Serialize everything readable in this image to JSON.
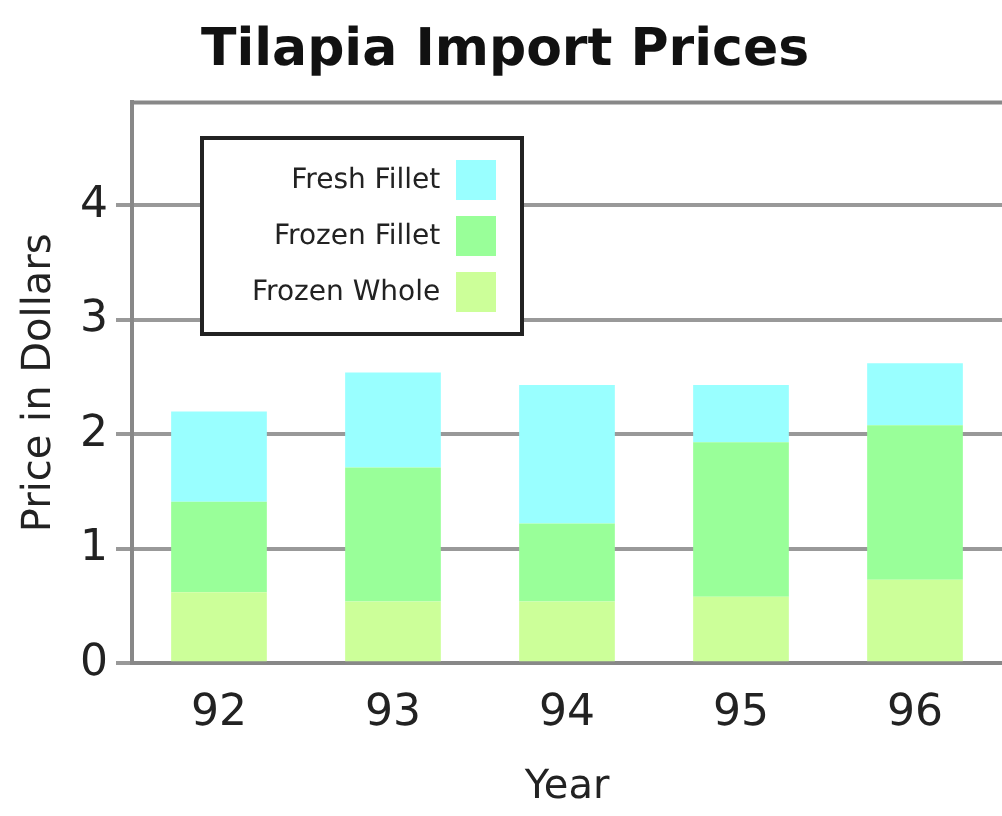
{
  "chart_data": {
    "type": "bar",
    "title": "Tilapia Import Prices",
    "xlabel": "Year",
    "ylabel": "Price in Dollars",
    "categories": [
      "92",
      "93",
      "94",
      "95",
      "96"
    ],
    "stacked": true,
    "series": [
      {
        "name": "Frozen Whole",
        "color": "#ccff99",
        "values": [
          0.62,
          0.54,
          0.54,
          0.58,
          0.73
        ]
      },
      {
        "name": "Frozen Fillet",
        "color": "#99ff99",
        "values": [
          0.79,
          1.17,
          0.68,
          1.35,
          1.35
        ]
      },
      {
        "name": "Fresh Fillet",
        "color": "#99ffff",
        "values": [
          0.79,
          0.83,
          1.21,
          0.5,
          0.54
        ]
      }
    ],
    "ylim": [
      0,
      4.9
    ],
    "yticks": [
      0,
      1,
      2,
      3,
      4
    ],
    "grid": "y",
    "legend": "top left"
  }
}
